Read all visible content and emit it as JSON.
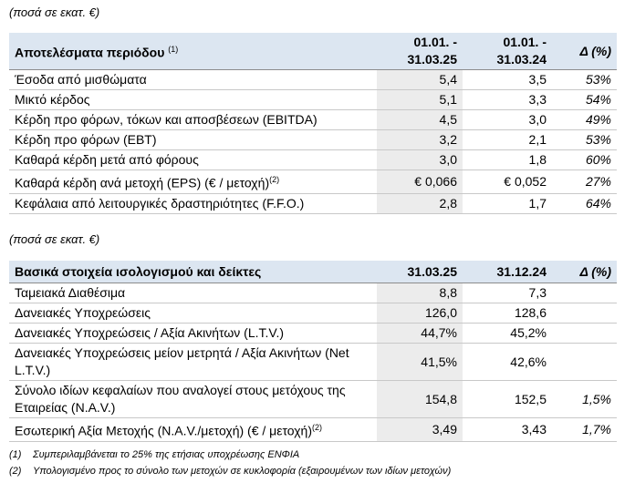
{
  "table1": {
    "unit": "(ποσά σε εκατ. €)",
    "title": "Αποτελέσματα περιόδου",
    "title_note": "(1)",
    "columns": [
      [
        "01.01. -",
        "31.03.25"
      ],
      [
        "01.01. -",
        "31.03.24"
      ],
      [
        "Δ (%)"
      ]
    ],
    "rows": [
      {
        "label": "Έσοδα από μισθώματα",
        "cells": [
          "5,4",
          "3,5",
          "53%"
        ]
      },
      {
        "label": "Μικτό κέρδος",
        "cells": [
          "5,1",
          "3,3",
          "54%"
        ]
      },
      {
        "label": "Κέρδη προ φόρων, τόκων και αποσβέσεων (EBITDA)",
        "cells": [
          "4,5",
          "3,0",
          "49%"
        ]
      },
      {
        "label": "Κέρδη προ φόρων (EBT)",
        "cells": [
          "3,2",
          "2,1",
          "53%"
        ]
      },
      {
        "label": "Καθαρά κέρδη μετά από φόρους",
        "cells": [
          "3,0",
          "1,8",
          "60%"
        ]
      },
      {
        "label": "Καθαρά κέρδη ανά μετοχή (EPS) (€ / μετοχή)",
        "note": "(2)",
        "cells": [
          "€ 0,066",
          "€ 0,052",
          "27%"
        ]
      },
      {
        "label": "Κεφάλαια από λειτουργικές δραστηριότητες (F.F.O.)",
        "cells": [
          "2,8",
          "1,7",
          "64%"
        ]
      }
    ]
  },
  "table2": {
    "unit": "(ποσά σε εκατ. €)",
    "title": "Βασικά στοιχεία ισολογισμού και δείκτες",
    "columns": [
      [
        "31.03.25"
      ],
      [
        "31.12.24"
      ],
      [
        "Δ (%)"
      ]
    ],
    "rows": [
      {
        "label": "Ταμειακά Διαθέσιμα",
        "cells": [
          "8,8",
          "7,3"
        ]
      },
      {
        "label": "Δανειακές Υποχρεώσεις",
        "cells": [
          "126,0",
          "128,6"
        ]
      },
      {
        "label": "Δανειακές Υποχρεώσεις / Αξία Ακινήτων (L.T.V.)",
        "cells": [
          "44,7%",
          "45,2%"
        ]
      },
      {
        "label": "Δανειακές Υποχρεώσεις μείον μετρητά / Αξία Ακινήτων (Net L.T.V.)",
        "cells": [
          "41,5%",
          "42,6%"
        ]
      },
      {
        "label": "Σύνολο ιδίων κεφαλαίων που αναλογεί στους μετόχους της Εταιρείας (N.A.V.)",
        "cells": [
          "154,8",
          "152,5",
          "1,5%"
        ]
      },
      {
        "label": "Εσωτερική Αξία Μετοχής (N.A.V./μετοχή) (€ / μετοχή)",
        "note": "(2)",
        "cells": [
          "3,49",
          "3,43",
          "1,7%"
        ]
      }
    ]
  },
  "footnotes": [
    {
      "mark": "(1)",
      "text": "Συμπεριλαμβάνεται το 25% της ετήσιας υποχρέωσης ΕΝΦΙΑ"
    },
    {
      "mark": "(2)",
      "text": "Υπολογισμένο προς το σύνολο των μετοχών σε κυκλοφορία (εξαιρουμένων των ιδίων μετοχών)"
    }
  ]
}
